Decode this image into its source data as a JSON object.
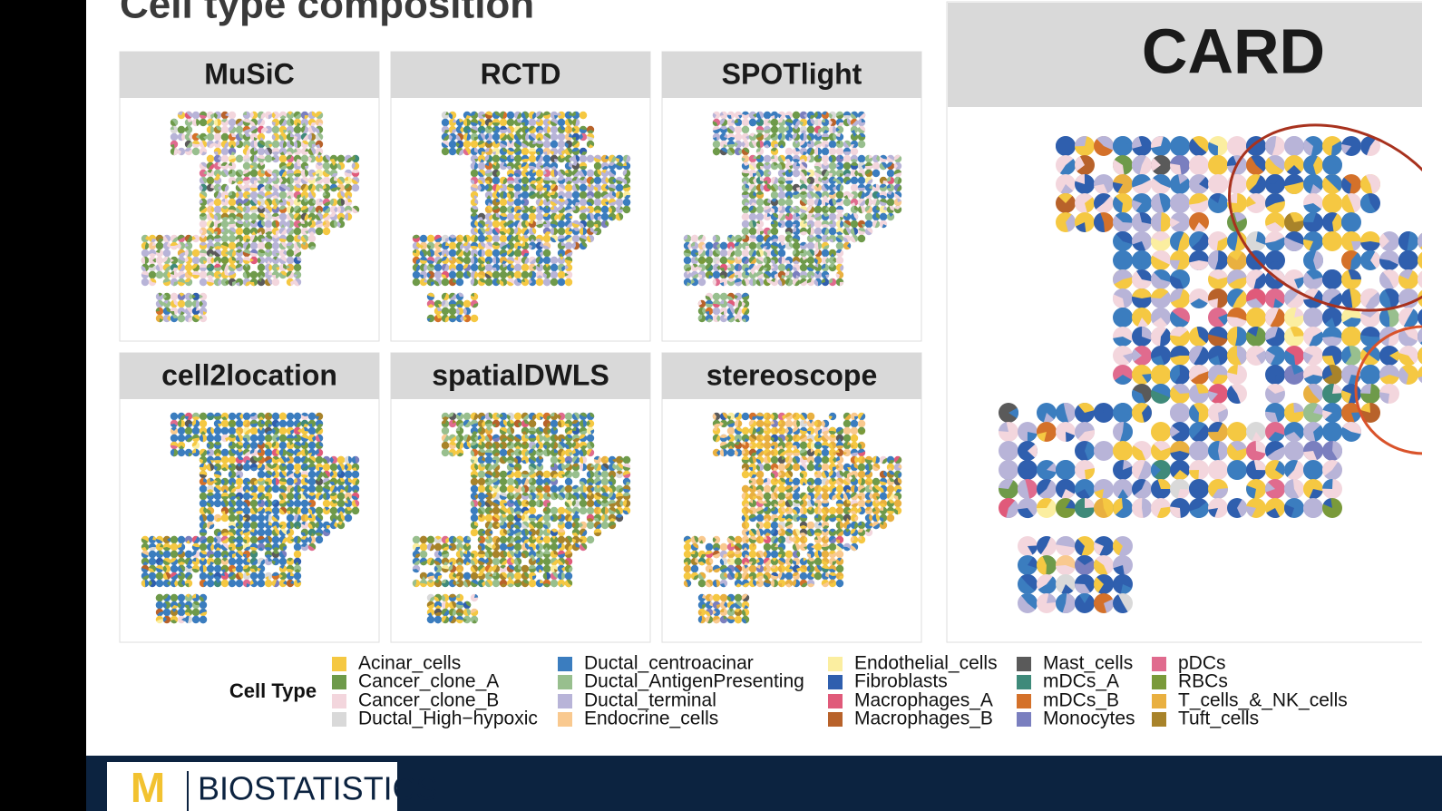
{
  "title": "Cell type composition",
  "panels": [
    {
      "title": "MuSiC"
    },
    {
      "title": "RCTD"
    },
    {
      "title": "SPOTlight"
    },
    {
      "title": "cell2location"
    },
    {
      "title": "spatialDWLS"
    },
    {
      "title": "stereoscope"
    }
  ],
  "card_panel": {
    "title": "CARD"
  },
  "legend": {
    "title": "Cell Type",
    "items": [
      {
        "label": "Acinar_cells",
        "color": "#f5c842"
      },
      {
        "label": "Cancer_clone_A",
        "color": "#6e9a4a"
      },
      {
        "label": "Cancer_clone_B",
        "color": "#f3d6dd"
      },
      {
        "label": "Ductal_High−hypoxic",
        "color": "#d9d9d9"
      },
      {
        "label": "Ductal_centroacinar",
        "color": "#3b7dbf"
      },
      {
        "label": "Ductal_AntigenPresenting",
        "color": "#98bf8e"
      },
      {
        "label": "Ductal_terminal",
        "color": "#b8b4d8"
      },
      {
        "label": "Endocrine_cells",
        "color": "#f9c98f"
      },
      {
        "label": "Endothelial_cells",
        "color": "#fbeea0"
      },
      {
        "label": "Fibroblasts",
        "color": "#2f5fae"
      },
      {
        "label": "Macrophages_A",
        "color": "#e05a7a"
      },
      {
        "label": "Macrophages_B",
        "color": "#b8622a"
      },
      {
        "label": "Mast_cells",
        "color": "#5a5a5a"
      },
      {
        "label": "mDCs_A",
        "color": "#3f8a7a"
      },
      {
        "label": "mDCs_B",
        "color": "#d4712a"
      },
      {
        "label": "Monocytes",
        "color": "#7a7fbf"
      },
      {
        "label": "pDCs",
        "color": "#e06b8e"
      },
      {
        "label": "RBCs",
        "color": "#7a9a3a"
      },
      {
        "label": "T_cells_&_NK_cells",
        "color": "#e9b040"
      },
      {
        "label": "Tuft_cells",
        "color": "#a8832a"
      }
    ]
  },
  "footer": {
    "logo": "M",
    "text": "BIOSTATISTICS"
  }
}
